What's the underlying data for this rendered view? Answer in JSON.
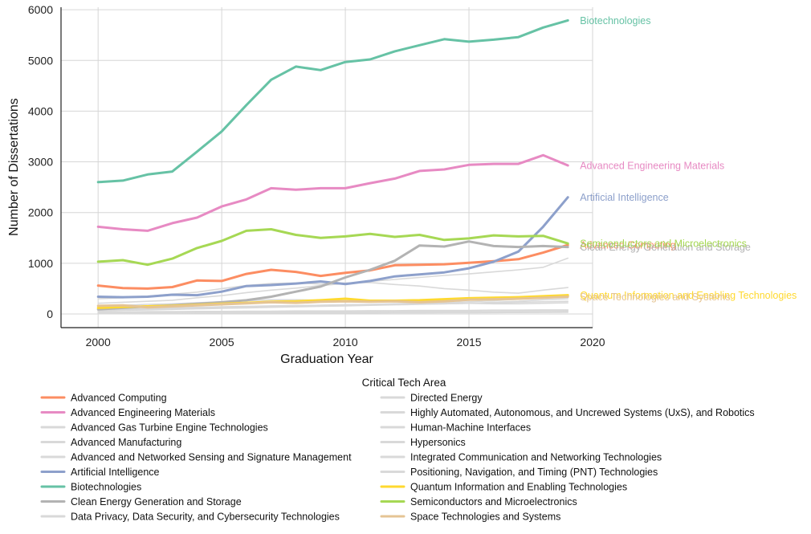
{
  "chart_data": {
    "type": "line",
    "xlabel": "Graduation Year",
    "ylabel": "Number of Dissertations",
    "xlim": [
      1998.5,
      2020
    ],
    "ylim": [
      -270,
      6050
    ],
    "xticks": [
      2000,
      2005,
      2010,
      2015,
      2020
    ],
    "yticks": [
      0,
      1000,
      2000,
      3000,
      4000,
      5000,
      6000
    ],
    "grid": true,
    "legend_title": "Critical Tech Area",
    "legend_position": "bottom",
    "x": [
      2000,
      2001,
      2002,
      2003,
      2004,
      2005,
      2006,
      2007,
      2008,
      2009,
      2010,
      2011,
      2012,
      2013,
      2014,
      2015,
      2016,
      2017,
      2018,
      2019
    ],
    "series": [
      {
        "name": "Advanced Computing",
        "color": "#fc8d62",
        "highlight": true,
        "end_label": "Advanced Computing",
        "values": [
          560,
          510,
          500,
          530,
          660,
          650,
          790,
          870,
          830,
          750,
          810,
          860,
          960,
          970,
          980,
          1010,
          1040,
          1080,
          1210,
          1360
        ]
      },
      {
        "name": "Advanced Engineering Materials",
        "color": "#e78ac3",
        "highlight": true,
        "end_label": "Advanced Engineering Materials",
        "values": [
          1720,
          1670,
          1640,
          1790,
          1900,
          2120,
          2260,
          2480,
          2450,
          2480,
          2480,
          2580,
          2670,
          2820,
          2850,
          2940,
          2960,
          2960,
          3130,
          2930
        ]
      },
      {
        "name": "Advanced Gas Turbine Engine Technologies",
        "color": "#d9d9d9",
        "highlight": false,
        "values": [
          40,
          40,
          45,
          45,
          50,
          50,
          55,
          55,
          60,
          60,
          60,
          65,
          65,
          70,
          70,
          70,
          75,
          75,
          80,
          80
        ]
      },
      {
        "name": "Advanced Manufacturing",
        "color": "#d9d9d9",
        "highlight": false,
        "values": [
          210,
          230,
          250,
          270,
          320,
          360,
          420,
          470,
          510,
          560,
          600,
          640,
          680,
          720,
          760,
          790,
          830,
          870,
          920,
          1100
        ]
      },
      {
        "name": "Advanced and Networked Sensing and Signature Management",
        "color": "#d9d9d9",
        "highlight": false,
        "values": [
          300,
          320,
          350,
          390,
          430,
          500,
          560,
          600,
          610,
          590,
          610,
          620,
          580,
          550,
          500,
          470,
          430,
          410,
          470,
          520
        ]
      },
      {
        "name": "Artificial Intelligence",
        "color": "#8da0cb",
        "highlight": true,
        "end_label": "Artificial Intelligence",
        "values": [
          340,
          330,
          340,
          380,
          370,
          440,
          550,
          570,
          600,
          640,
          590,
          650,
          740,
          780,
          820,
          900,
          1030,
          1230,
          1720,
          2300
        ]
      },
      {
        "name": "Biotechnologies",
        "color": "#66c2a5",
        "highlight": true,
        "end_label": "Biotechnologies",
        "values": [
          2600,
          2630,
          2750,
          2810,
          3200,
          3600,
          4120,
          4620,
          4880,
          4810,
          4970,
          5020,
          5180,
          5300,
          5420,
          5370,
          5410,
          5460,
          5650,
          5790
        ]
      },
      {
        "name": "Clean Energy Generation and Storage",
        "color": "#b3b3b3",
        "highlight": true,
        "end_label": "Clean Energy Generation and Storage",
        "values": [
          90,
          120,
          150,
          170,
          200,
          230,
          270,
          340,
          440,
          540,
          720,
          870,
          1050,
          1350,
          1330,
          1430,
          1340,
          1320,
          1340,
          1320
        ]
      },
      {
        "name": "Data Privacy, Data Security, and Cybersecurity Technologies",
        "color": "#d9d9d9",
        "highlight": false,
        "values": [
          60,
          70,
          80,
          90,
          100,
          110,
          120,
          130,
          140,
          150,
          160,
          170,
          180,
          190,
          200,
          210,
          230,
          250,
          280,
          300
        ]
      },
      {
        "name": "Directed Energy",
        "color": "#d9d9d9",
        "highlight": false,
        "values": [
          20,
          22,
          24,
          25,
          26,
          28,
          30,
          30,
          32,
          32,
          34,
          34,
          35,
          36,
          36,
          38,
          38,
          40,
          40,
          42
        ]
      },
      {
        "name": "Highly Automated, Autonomous, and Uncrewed Systems (UxS), and Robotics",
        "color": "#d9d9d9",
        "highlight": false,
        "values": [
          80,
          90,
          100,
          110,
          120,
          130,
          140,
          150,
          160,
          170,
          180,
          190,
          200,
          210,
          220,
          240,
          260,
          290,
          330,
          360
        ]
      },
      {
        "name": "Human-Machine Interfaces",
        "color": "#d9d9d9",
        "highlight": false,
        "values": [
          100,
          110,
          115,
          120,
          130,
          140,
          150,
          160,
          165,
          170,
          180,
          185,
          190,
          195,
          200,
          210,
          220,
          230,
          240,
          250
        ]
      },
      {
        "name": "Hypersonics",
        "color": "#d9d9d9",
        "highlight": false,
        "values": [
          10,
          10,
          12,
          12,
          14,
          15,
          16,
          17,
          18,
          18,
          20,
          20,
          22,
          22,
          24,
          25,
          26,
          28,
          30,
          32
        ]
      },
      {
        "name": "Integrated Communication and Networking Technologies",
        "color": "#d9d9d9",
        "highlight": false,
        "values": [
          150,
          170,
          190,
          200,
          220,
          240,
          260,
          280,
          280,
          270,
          260,
          250,
          240,
          230,
          220,
          210,
          200,
          200,
          210,
          220
        ]
      },
      {
        "name": "Positioning, Navigation, and Timing (PNT) Technologies",
        "color": "#d9d9d9",
        "highlight": false,
        "values": [
          30,
          32,
          34,
          36,
          38,
          40,
          42,
          44,
          46,
          48,
          50,
          52,
          54,
          56,
          58,
          60,
          62,
          64,
          66,
          68
        ]
      },
      {
        "name": "Quantum Information and Enabling Technologies",
        "color": "#ffd92f",
        "highlight": true,
        "end_label": "Quantum Information and Enabling Technologies",
        "values": [
          120,
          140,
          150,
          160,
          180,
          200,
          220,
          240,
          250,
          270,
          300,
          260,
          260,
          270,
          290,
          310,
          320,
          330,
          350,
          370
        ]
      },
      {
        "name": "Semiconductors and Microelectronics",
        "color": "#a6d854",
        "highlight": true,
        "end_label": "Semiconductors and Microelectronics",
        "values": [
          1030,
          1060,
          970,
          1090,
          1300,
          1440,
          1640,
          1670,
          1560,
          1500,
          1530,
          1580,
          1520,
          1560,
          1460,
          1490,
          1550,
          1530,
          1540,
          1390
        ]
      },
      {
        "name": "Space Technologies and Systems",
        "color": "#e5c494",
        "highlight": true,
        "end_label": "Space Technologies and Systems",
        "values": [
          160,
          170,
          130,
          150,
          170,
          190,
          210,
          230,
          220,
          240,
          250,
          240,
          250,
          230,
          250,
          280,
          290,
          300,
          320,
          340
        ]
      }
    ]
  }
}
